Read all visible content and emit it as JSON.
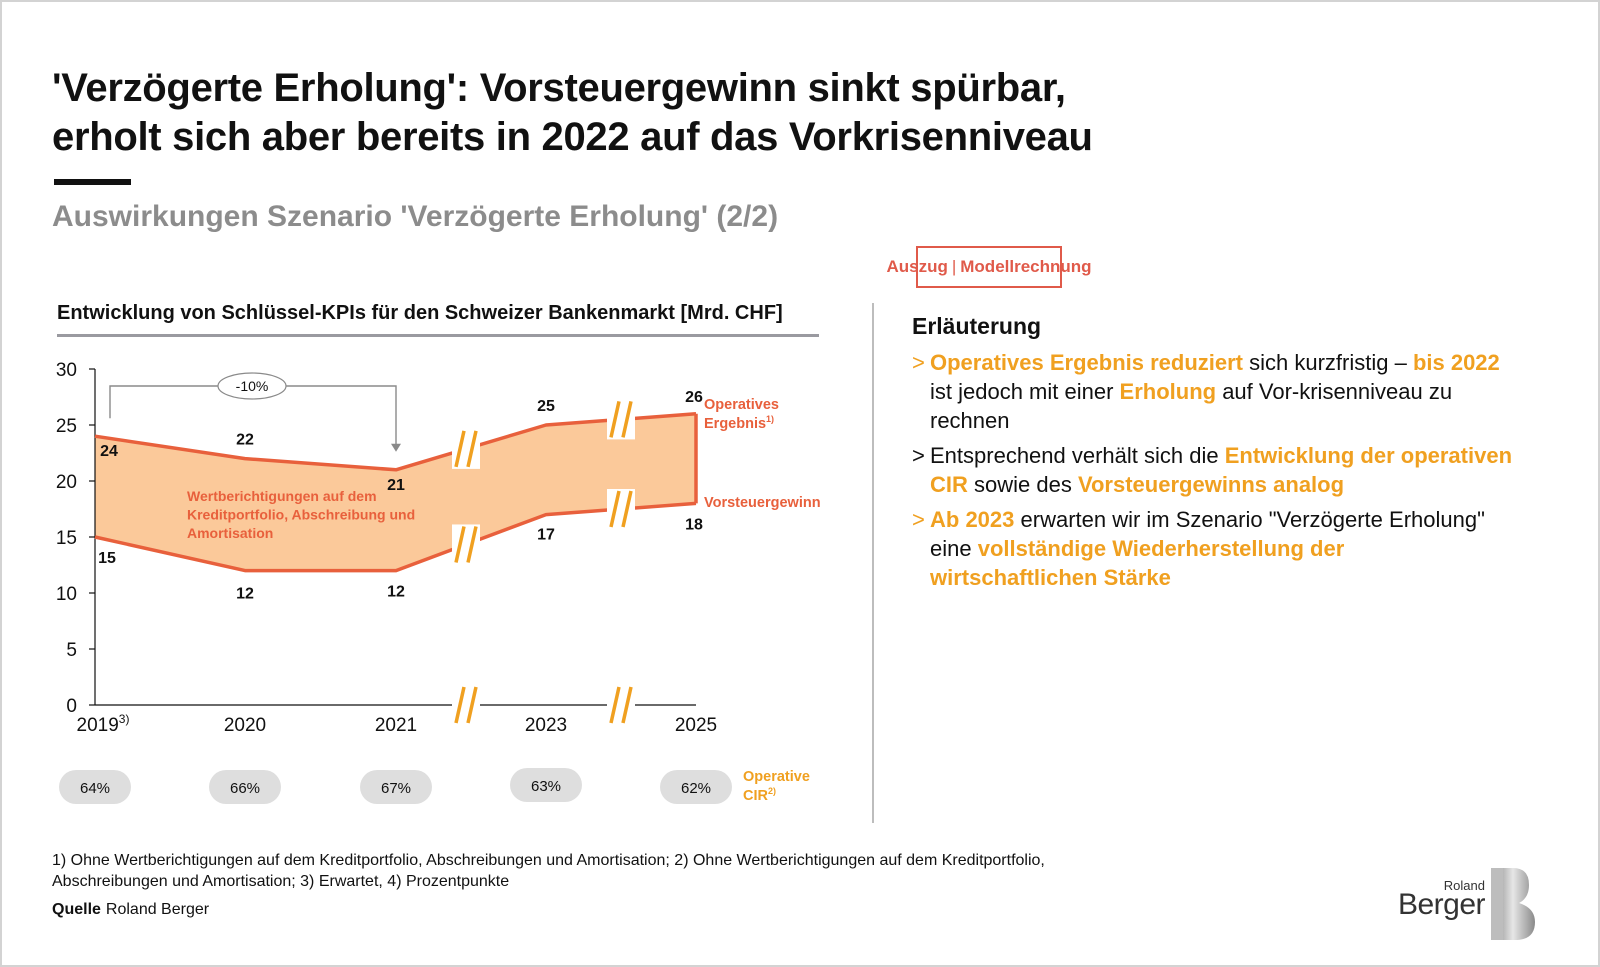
{
  "title": {
    "line1": "'Verzögerte Erholung': Vorsteuergewinn sinkt spürbar,",
    "line2": "erholt sich aber bereits in 2022 auf das Vorkrisenniveau"
  },
  "subtitle": "Auswirkungen Szenario 'Verzögerte Erholung' (2/2)",
  "badge": {
    "left": "Auszug",
    "sep": "|",
    "right": "Modellrechnung"
  },
  "chart_heading": "Entwicklung von Schlüssel-KPIs für den Schweizer Bankenmarkt [Mrd. CHF]",
  "chart_data": {
    "type": "line",
    "title": "Entwicklung von Schlüssel-KPIs für den Schweizer Bankenmarkt [Mrd. CHF]",
    "categories": [
      "2019",
      "2020",
      "2021",
      "2023",
      "2025"
    ],
    "category_superscripts": [
      "3)",
      "",
      "",
      "",
      ""
    ],
    "ylim": [
      0,
      30
    ],
    "yticks": [
      0,
      5,
      10,
      15,
      20,
      25,
      30
    ],
    "series": [
      {
        "name": "Operatives Ergebnis",
        "name_line1": "Operatives",
        "name_line2": "Ergebnis",
        "superscript": "1)",
        "values": [
          24,
          22,
          21,
          25,
          26
        ],
        "value_labels": [
          "24",
          "22",
          "21",
          "25",
          "26"
        ],
        "color": "#e8603c"
      },
      {
        "name": "Vorsteuergewinn",
        "values": [
          15,
          12,
          12,
          17,
          18
        ],
        "value_labels": [
          "15",
          "12",
          "12",
          "17",
          "18"
        ],
        "color": "#e8603c"
      }
    ],
    "area_fill": "#fbc99a",
    "area_label": [
      "Wertberichtigungen auf dem",
      "Kreditportfolio, Abschreibung und",
      "Amortisation"
    ],
    "change_annotation": {
      "label": "-10%",
      "from": "2019",
      "to": "2021"
    },
    "axis_breaks_between": [
      [
        "2021",
        "2023"
      ],
      [
        "2023",
        "2025"
      ]
    ],
    "break_color": "#f0a020",
    "cir": {
      "label_line1": "Operative",
      "label_line2": "CIR",
      "superscript": "2)",
      "values": [
        "64%",
        "66%",
        "67%",
        "63%",
        "62%"
      ],
      "color": "#f0a020",
      "pill_color": "#dedede"
    },
    "grid": false
  },
  "explanation": {
    "title": "Erläuterung",
    "bullet1": {
      "mark": ">",
      "hl1": "Operatives Ergebnis reduziert",
      "t1": " sich kurzfristig – ",
      "hl2": "bis 2022",
      "t2": " ist jedoch mit einer ",
      "hl3": "Erholung",
      "t3": " auf Vor-krisenniveau zu rechnen"
    },
    "bullet2": {
      "mark": ">",
      "t1": "Entsprechend verhält sich die ",
      "hl1": "Entwicklung der operativen CIR",
      "t2": " sowie des ",
      "hl2": "Vorsteuergewinns analog"
    },
    "bullet3": {
      "mark": ">",
      "hl1": "Ab 2023",
      "t1": " erwarten wir im Szenario \"Verzögerte Erholung\" eine ",
      "hl2": "vollständige Wiederherstellung der wirtschaftlichen Stärke"
    }
  },
  "footnote": {
    "line1": "1) Ohne Wertberichtigungen auf dem Kreditportfolio, Abschreibungen und Amortisation; 2) Ohne Wertberichtigungen auf dem Kreditportfolio,",
    "line2": "Abschreibungen und Amortisation; 3) Erwartet, 4) Prozentpunkte"
  },
  "source": {
    "label": "Quelle",
    "value": "Roland Berger"
  },
  "logo": {
    "line1": "Roland",
    "line2": "Berger"
  },
  "colors": {
    "accent_orange": "#f0a020",
    "accent_red": "#e05a4a",
    "line_color": "#e8603c",
    "area_fill": "#fbc99a",
    "subtitle_gray": "#8c8c8c"
  }
}
